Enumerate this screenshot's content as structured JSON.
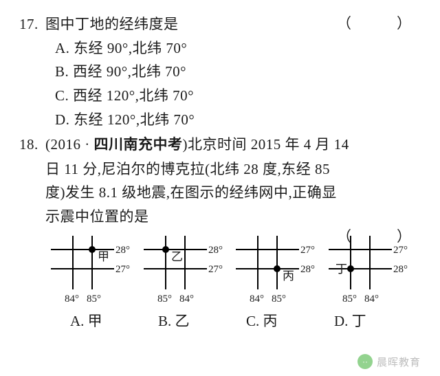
{
  "q17": {
    "number": "17.",
    "stem": "图中丁地的经纬度是",
    "options": {
      "A": "A. 东经 90°,北纬 70°",
      "B": "B. 西经 90°,北纬 70°",
      "C": "C. 西经 120°,北纬 70°",
      "D": "D. 东经 120°,北纬 70°"
    },
    "paren": "（　　）"
  },
  "q18": {
    "number": "18.",
    "source_prefix": "(2016 · ",
    "source_bold": "四川南充中考",
    "source_suffix": ")",
    "stem1": "北京时间 2015 年 4 月 14",
    "stem2": "日 11 分,尼泊尔的博克拉(北纬 28 度,东经 85",
    "stem3": "度)发生 8.1 级地震,在图示的经纬网中,正确显",
    "stem4": "示震中位置的是",
    "paren": "（　　）",
    "diagrams": {
      "common": {
        "stroke": "#000000",
        "stroke_width": 2,
        "dot_fill": "#000000",
        "dot_r": 5,
        "font_size": 15
      },
      "A": {
        "label": "甲",
        "top_lat": "28°",
        "bot_lat": "27°",
        "left_lon": "84°",
        "right_lon": "85°",
        "dot": {
          "on_right_line": true,
          "on_top_line": true
        },
        "label_pos": "right-of-dot"
      },
      "B": {
        "label": "乙",
        "top_lat": "28°",
        "bot_lat": "27°",
        "left_lon": "85°",
        "right_lon": "84°",
        "dot": {
          "on_left_line": true,
          "on_top_line": true
        },
        "label_pos": "right-of-dot"
      },
      "C": {
        "label": "丙",
        "top_lat": "27°",
        "bot_lat": "28°",
        "left_lon": "84°",
        "right_lon": "85°",
        "dot": {
          "on_right_line": true,
          "on_bot_line": true
        },
        "label_pos": "right-of-dot"
      },
      "D": {
        "label": "丁",
        "top_lat": "27°",
        "bot_lat": "28°",
        "left_lon": "85°",
        "right_lon": "84°",
        "dot": {
          "on_left_line": true,
          "on_bot_line": true
        },
        "label_pos": "left-of-dot"
      }
    },
    "answers": {
      "A": "A. 甲",
      "B": "B. 乙",
      "C": "C. 丙",
      "D": "D. 丁"
    }
  },
  "watermark": {
    "icon_text": "··",
    "text": "晨晖教育"
  }
}
